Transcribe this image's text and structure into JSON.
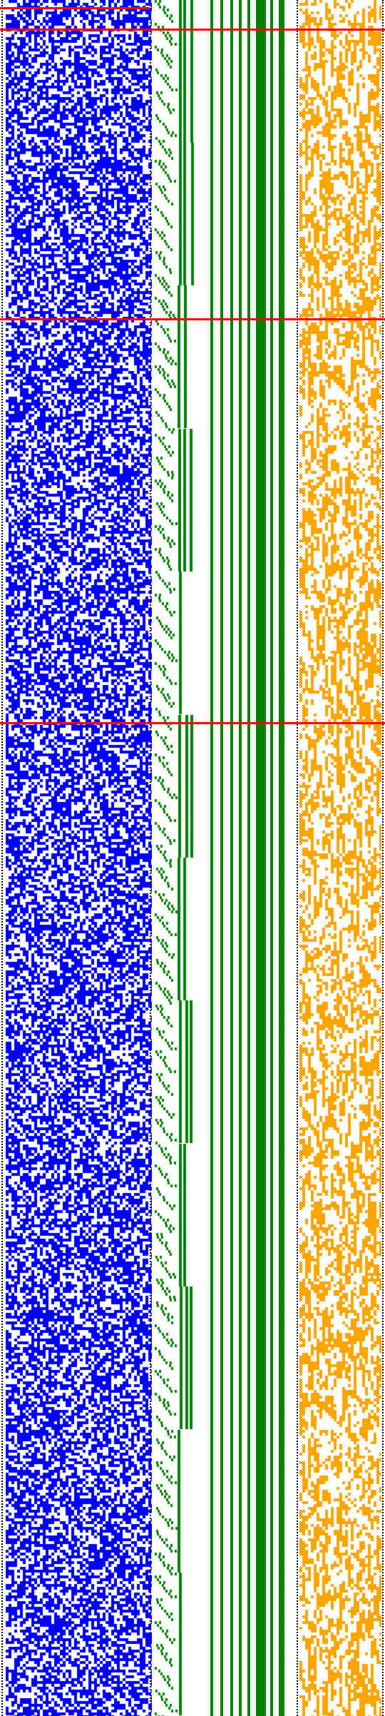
{
  "colors": {
    "background": "#ffffff",
    "blue_cells": "#0000ff",
    "green_bars": "#008000",
    "orange_cells": "#ffa500",
    "red_markers": "#ff0000",
    "borders": "#000000"
  }
}
